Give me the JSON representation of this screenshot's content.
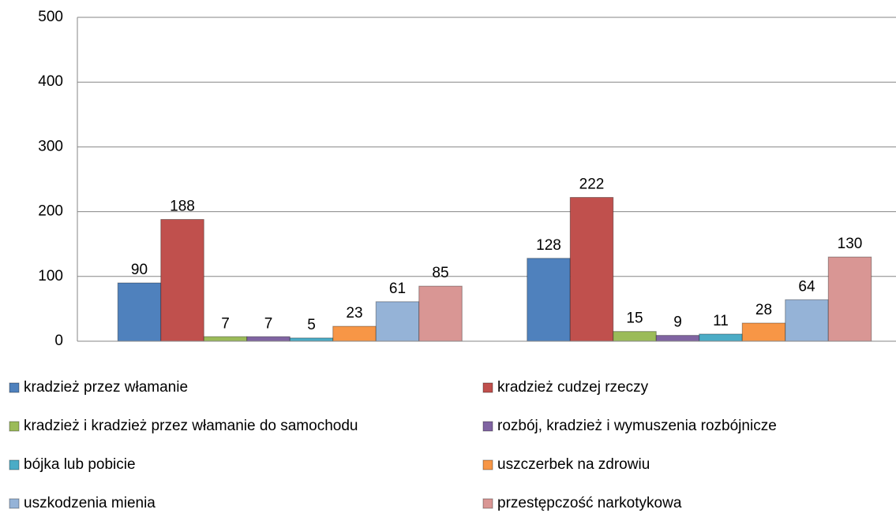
{
  "chart_data": {
    "type": "bar",
    "categories": [
      null,
      null
    ],
    "series": [
      {
        "name": "kradzież przez włamanie",
        "color": "#4f81bd",
        "values": [
          90,
          128
        ]
      },
      {
        "name": "kradzież cudzej rzeczy",
        "color": "#c0504d",
        "values": [
          188,
          222
        ]
      },
      {
        "name": "kradzież i kradzież przez włamanie do samochodu",
        "color": "#9bbb59",
        "values": [
          7,
          15
        ]
      },
      {
        "name": "rozbój, kradzież i wymuszenia rozbójnicze",
        "color": "#8064a2",
        "values": [
          7,
          9
        ]
      },
      {
        "name": "bójka lub pobicie",
        "color": "#4bacc6",
        "values": [
          5,
          11
        ]
      },
      {
        "name": "uszczerbek na zdrowiu",
        "color": "#f79646",
        "values": [
          23,
          28
        ]
      },
      {
        "name": "uszkodzenia mienia",
        "color": "#95b3d7",
        "values": [
          61,
          64
        ]
      },
      {
        "name": "przestępczość narkotykowa",
        "color": "#d99694",
        "values": [
          85,
          130
        ]
      }
    ],
    "ylim": [
      0,
      500
    ],
    "yticks": [
      0,
      100,
      200,
      300,
      400,
      500
    ],
    "grid": true,
    "legend": "bottom"
  }
}
